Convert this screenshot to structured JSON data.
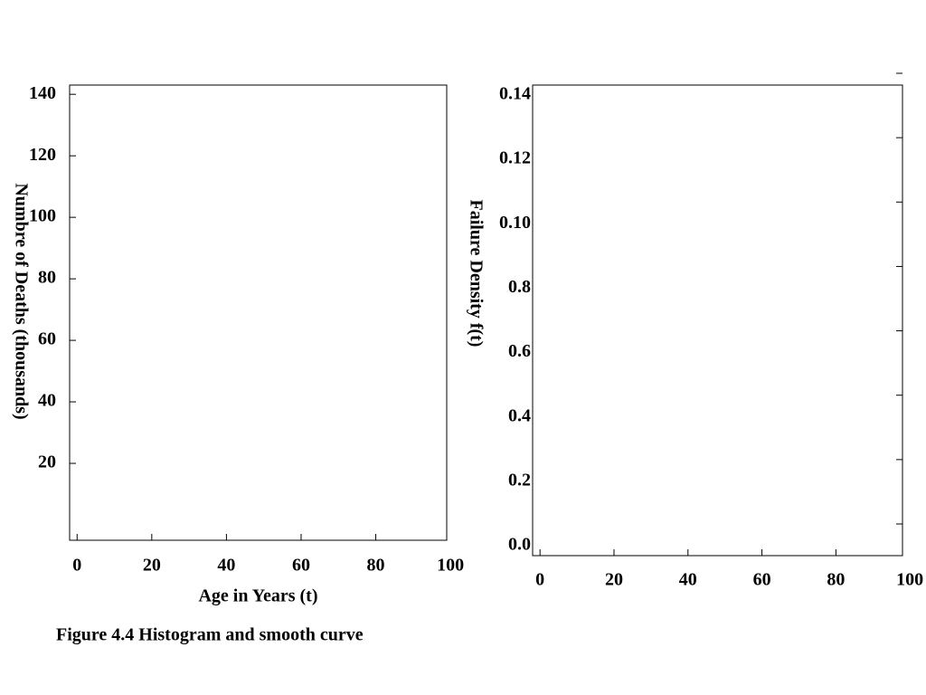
{
  "caption": "Figure  4.4 Histogram and smooth curve",
  "chart_data": [
    {
      "type": "histogram",
      "xlabel": "Age in Years (t)",
      "ylabel": "Numbre of Deaths (thousands)",
      "xlim": [
        -2,
        99
      ],
      "xticks": [
        0,
        20,
        40,
        60,
        80,
        100
      ],
      "ylim": [
        -5,
        143
      ],
      "yticks": [
        20,
        40,
        60,
        80,
        100,
        120,
        140
      ]
    },
    {
      "type": "line",
      "ylabel": "Failure Density f(t)",
      "xlim": [
        -2,
        98
      ],
      "xticks": [
        0,
        20,
        40,
        60,
        80,
        100
      ],
      "ycategories": [
        "0.0",
        "0.2",
        "0.4",
        "0.6",
        "0.8",
        "0.10",
        "0.12",
        "0.14"
      ]
    }
  ]
}
